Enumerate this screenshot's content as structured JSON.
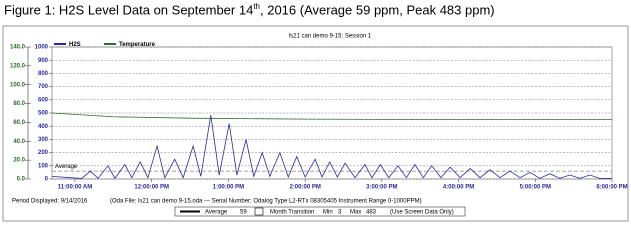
{
  "caption": {
    "before": "Figure 1: H2S Level Data on September 14",
    "sup": "th",
    "after": ", 2016 (Average 59 ppm, Peak 483 ppm)"
  },
  "footer": {
    "period": "Period Displayed: 9/14/2016",
    "file": "(Oda File: ls21 can demo 9-15.oda  ---  Serial Number: Odalog Type L2-RTx 08305405 Instrument Range 0-1000PPM)",
    "month": "Month Transition",
    "min_label": "Min",
    "min": 3,
    "max_label": "Max",
    "max": 483,
    "note": "(Use Screen Data Only)"
  },
  "chart_data": {
    "type": "line",
    "title": "ls21 can demo 9-15: Session 1",
    "grid": true,
    "average": {
      "label": "Average",
      "value": 59,
      "color": "#999999"
    },
    "xlim": [
      10.7,
      18.0
    ],
    "xticks": [
      {
        "value": 11,
        "label": "11:00:00 AM"
      },
      {
        "value": 12,
        "label": "12:00:00 PM"
      },
      {
        "value": 13,
        "label": "1:00:00 PM"
      },
      {
        "value": 14,
        "label": "2:00:00 PM"
      },
      {
        "value": 15,
        "label": "3:00:00 PM"
      },
      {
        "value": 16,
        "label": "4:00:00 PM"
      },
      {
        "value": 17,
        "label": "5:00:00 PM"
      },
      {
        "value": 18,
        "label": "6:00:00 PM"
      }
    ],
    "ylim": [
      0,
      1000
    ],
    "yticks": [
      0,
      100,
      200,
      300,
      400,
      500,
      600,
      700,
      800,
      900,
      1000
    ],
    "y2lim": [
      0,
      140
    ],
    "y2ticks": [
      {
        "value": 0,
        "label": "0.0"
      },
      {
        "value": 20,
        "label": "20.0"
      },
      {
        "value": 40,
        "label": "40.0"
      },
      {
        "value": 60,
        "label": "60.0"
      },
      {
        "value": 80,
        "label": "80.0"
      },
      {
        "value": 100,
        "label": "100.0"
      },
      {
        "value": 120,
        "label": "120.0"
      },
      {
        "value": 140,
        "label": "140.0"
      }
    ],
    "series": [
      {
        "name": "H2S",
        "color": "#2a2aa0",
        "x": [
          10.7,
          10.93,
          11.09,
          11.2,
          11.3,
          11.43,
          11.52,
          11.65,
          11.74,
          11.85,
          11.95,
          12.07,
          12.17,
          12.3,
          12.41,
          12.54,
          12.64,
          12.77,
          12.88,
          13.01,
          13.11,
          13.23,
          13.33,
          13.44,
          13.54,
          13.67,
          13.78,
          13.89,
          14.0,
          14.13,
          14.22,
          14.32,
          14.42,
          14.52,
          14.65,
          14.78,
          14.87,
          14.98,
          15.09,
          15.21,
          15.32,
          15.43,
          15.54,
          15.65,
          15.77,
          15.89,
          16.02,
          16.15,
          16.28,
          16.41,
          16.54,
          16.67,
          16.8,
          16.93,
          17.06,
          17.19,
          17.32,
          17.45,
          17.58,
          17.71,
          17.84,
          18.0
        ],
        "values": [
          20,
          10,
          5,
          60,
          5,
          100,
          5,
          110,
          10,
          130,
          10,
          250,
          10,
          150,
          10,
          250,
          20,
          483,
          30,
          420,
          30,
          300,
          20,
          200,
          20,
          200,
          15,
          170,
          15,
          150,
          15,
          130,
          15,
          120,
          10,
          110,
          10,
          110,
          10,
          100,
          10,
          110,
          10,
          100,
          10,
          90,
          10,
          80,
          10,
          70,
          10,
          60,
          10,
          50,
          5,
          40,
          5,
          30,
          5,
          30,
          5,
          5
        ]
      },
      {
        "name": "Temperature",
        "color": "#2e6b2e",
        "axis": "y2",
        "x": [
          10.7,
          11.5,
          12.5,
          14,
          16,
          18
        ],
        "values": [
          70,
          66,
          64.5,
          63.5,
          63,
          63
        ]
      }
    ]
  }
}
